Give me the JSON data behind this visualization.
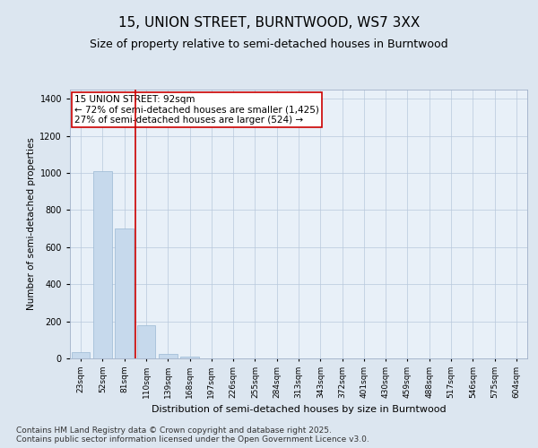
{
  "title_line1": "15, UNION STREET, BURNTWOOD, WS7 3XX",
  "title_line2": "Size of property relative to semi-detached houses in Burntwood",
  "xlabel": "Distribution of semi-detached houses by size in Burntwood",
  "ylabel": "Number of semi-detached properties",
  "categories": [
    "23sqm",
    "52sqm",
    "81sqm",
    "110sqm",
    "139sqm",
    "168sqm",
    "197sqm",
    "226sqm",
    "255sqm",
    "284sqm",
    "313sqm",
    "343sqm",
    "372sqm",
    "401sqm",
    "430sqm",
    "459sqm",
    "488sqm",
    "517sqm",
    "546sqm",
    "575sqm",
    "604sqm"
  ],
  "values": [
    35,
    1010,
    700,
    180,
    25,
    10,
    0,
    0,
    0,
    0,
    0,
    0,
    0,
    0,
    0,
    0,
    0,
    0,
    0,
    0,
    0
  ],
  "bar_color": "#c6d9ec",
  "bar_edgecolor": "#9ab8d4",
  "vline_x": 2.5,
  "vline_color": "#cc0000",
  "annotation_text": "15 UNION STREET: 92sqm\n← 72% of semi-detached houses are smaller (1,425)\n27% of semi-detached houses are larger (524) →",
  "annotation_box_color": "#ffffff",
  "annotation_box_edgecolor": "#cc0000",
  "ylim": [
    0,
    1450
  ],
  "yticks": [
    0,
    200,
    400,
    600,
    800,
    1000,
    1200,
    1400
  ],
  "background_color": "#dce6f0",
  "plot_background_color": "#e8f0f8",
  "footer_text": "Contains HM Land Registry data © Crown copyright and database right 2025.\nContains public sector information licensed under the Open Government Licence v3.0.",
  "title_fontsize": 11,
  "subtitle_fontsize": 9,
  "annotation_fontsize": 7.5,
  "footer_fontsize": 6.5,
  "ylabel_fontsize": 7.5,
  "xlabel_fontsize": 8,
  "tick_fontsize": 6.5,
  "ytick_fontsize": 7
}
